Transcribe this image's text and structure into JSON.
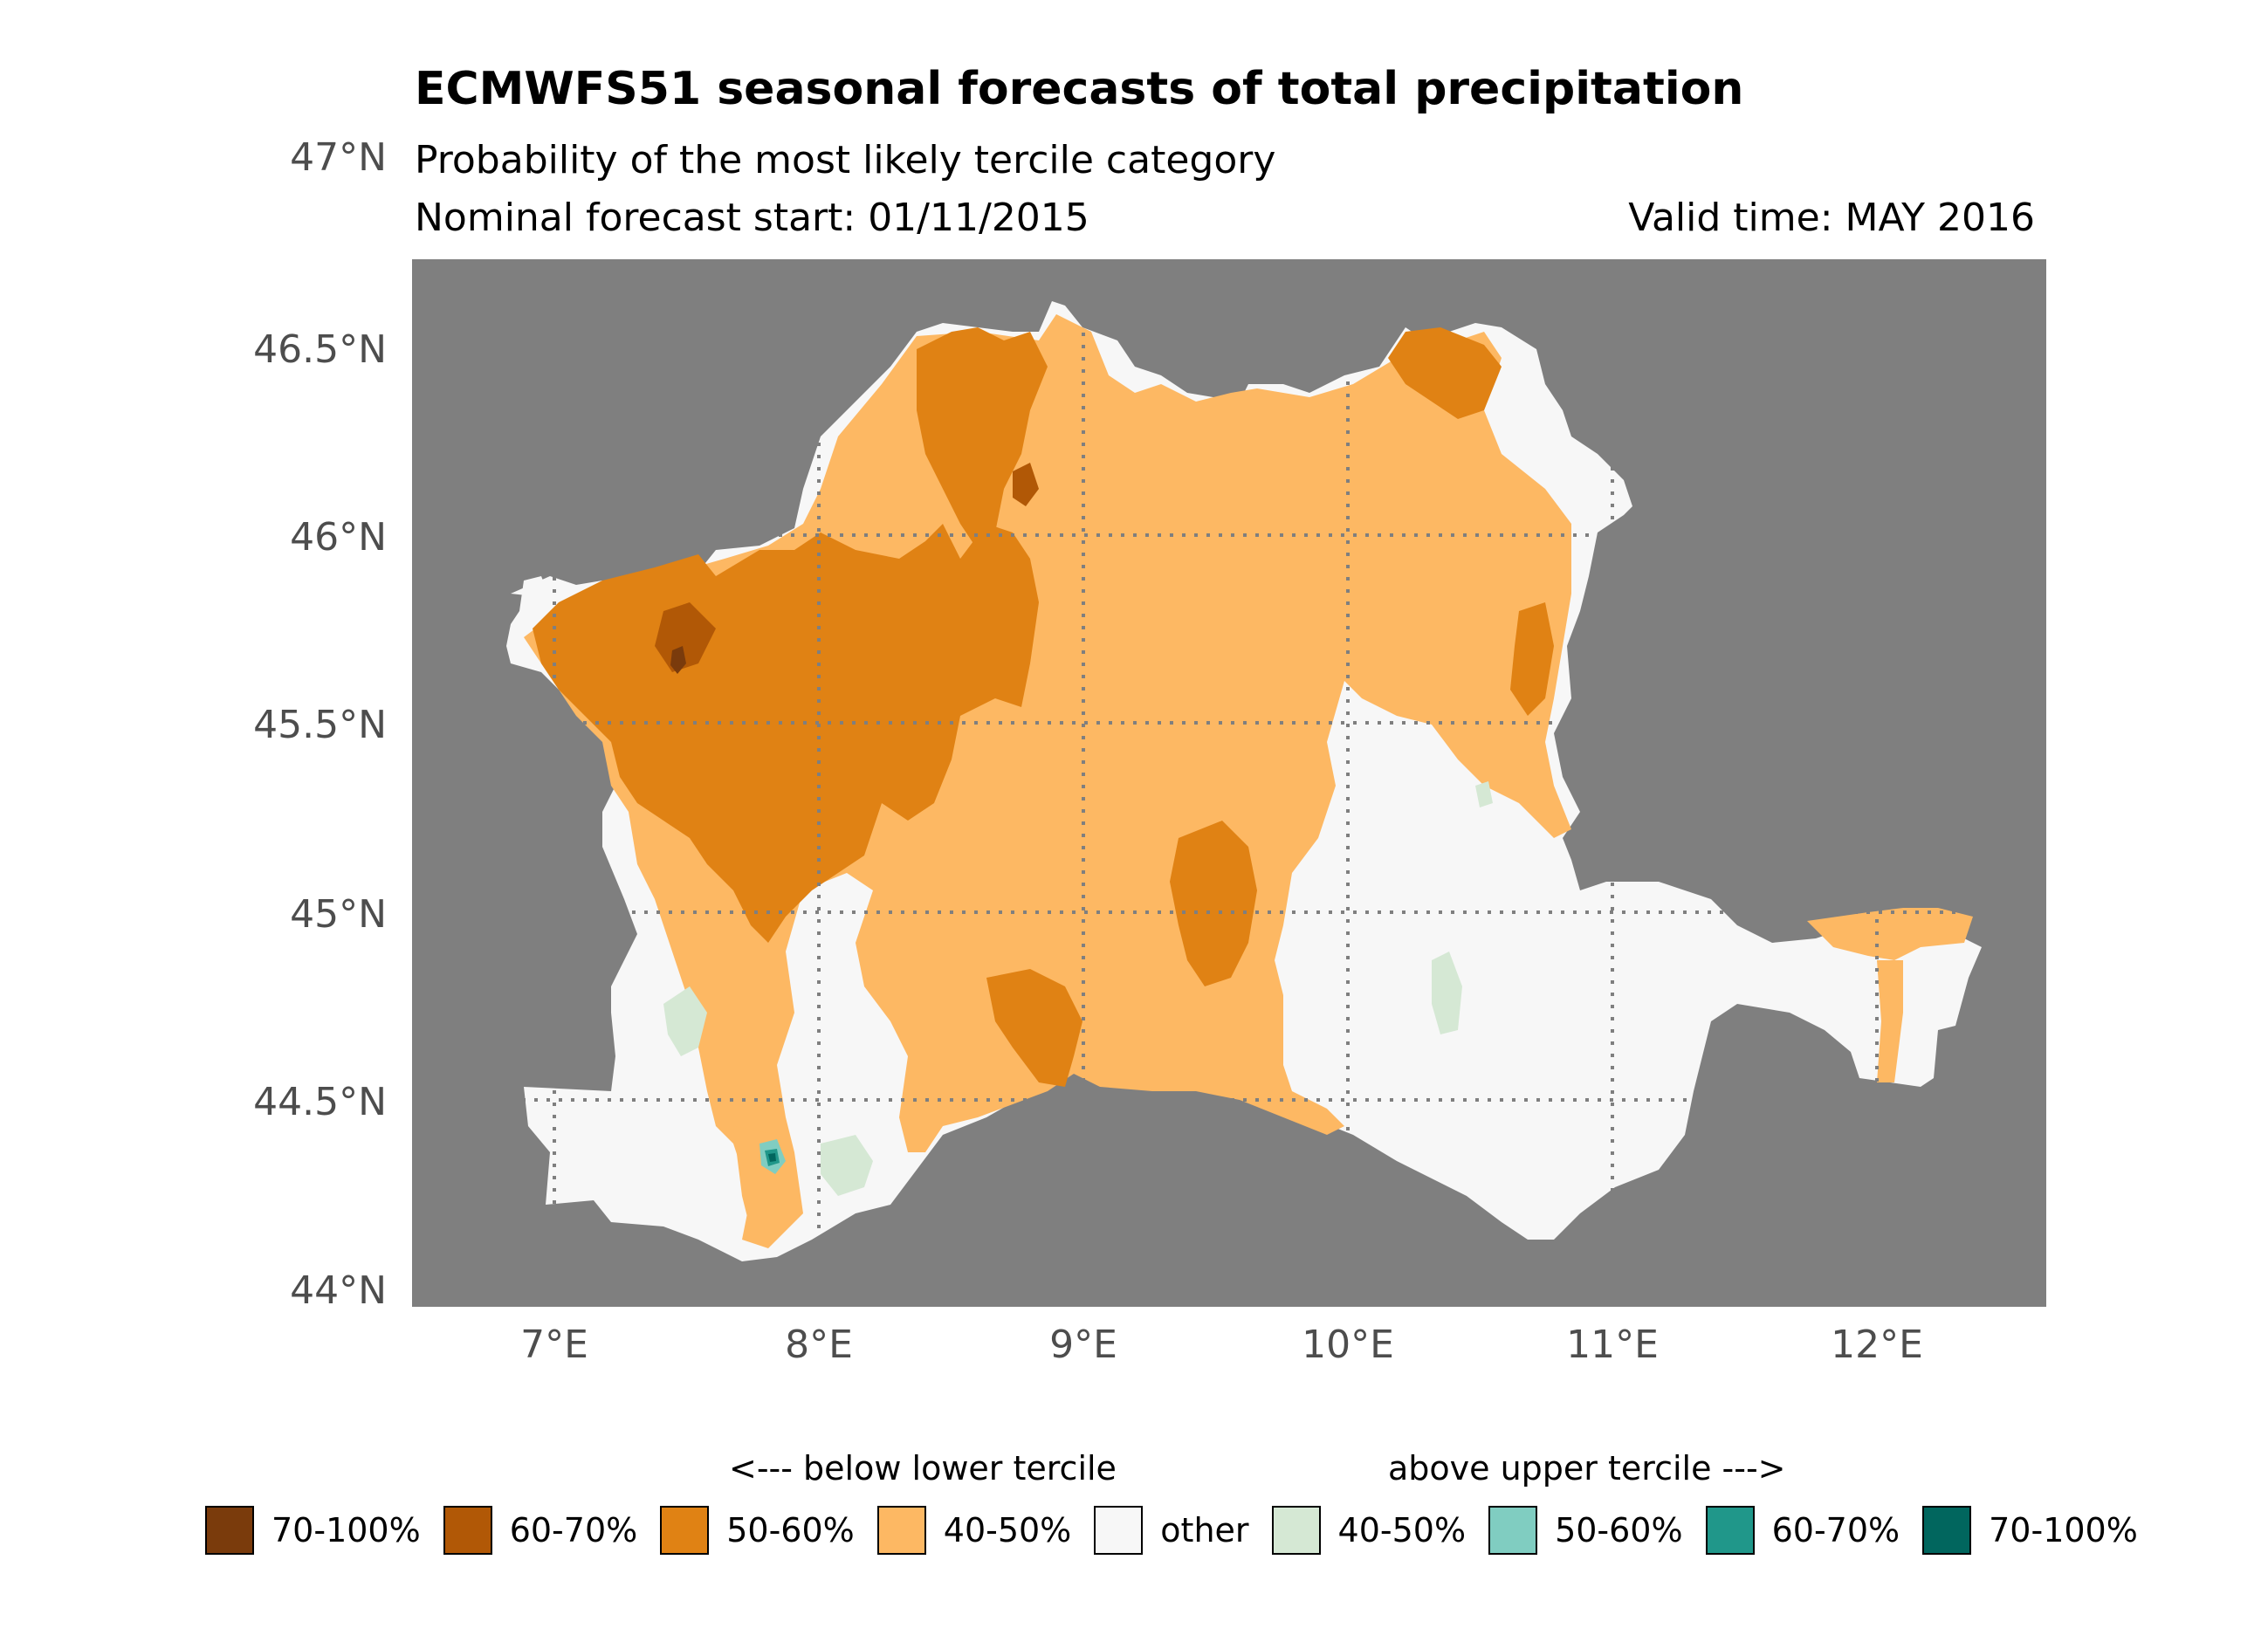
{
  "title": "ECMWFS51 seasonal forecasts of total precipitation",
  "subtitle": "Probability of the most likely tercile category",
  "forecast_start": "Nominal forecast start: 01/11/2015",
  "valid_time": "Valid time: MAY 2016",
  "axes": {
    "y_labels": [
      "47°N",
      "46.5°N",
      "46°N",
      "45.5°N",
      "45°N",
      "44.5°N",
      "44°N"
    ],
    "x_labels": [
      "7°E",
      "8°E",
      "9°E",
      "10°E",
      "11°E",
      "12°E"
    ]
  },
  "legend": {
    "below_label": "<--- below lower tercile",
    "above_label": "above upper tercile --->",
    "items": [
      {
        "label": "70-100%",
        "color": "#7a3b0c"
      },
      {
        "label": "60-70%",
        "color": "#b15806"
      },
      {
        "label": "50-60%",
        "color": "#e08214"
      },
      {
        "label": "40-50%",
        "color": "#fdb863"
      },
      {
        "label": "other",
        "color": "#f7f7f7"
      },
      {
        "label": "40-50%",
        "color": "#d5e8d4"
      },
      {
        "label": "50-60%",
        "color": "#80cdc1"
      },
      {
        "label": "60-70%",
        "color": "#20978a"
      },
      {
        "label": "70-100%",
        "color": "#01665e"
      }
    ]
  },
  "colors": {
    "background_ocean": "#7f7f7f",
    "grid": "#7f7f7f"
  }
}
